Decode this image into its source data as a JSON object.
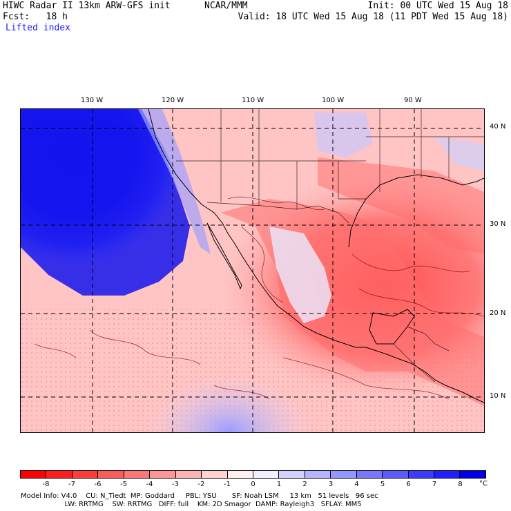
{
  "header": {
    "left_line1": "HIWC Radar II 13km ARW-GFS init",
    "left_line2": "Fcst:   18 h",
    "center_line1": "NCAR/MMM",
    "right_line1": "Init: 00 UTC Wed 15 Aug 18",
    "right_line2": "Valid: 18 UTC Wed 15 Aug 18 (11 PDT Wed 15 Aug 18)",
    "field": "Lifted index"
  },
  "axes": {
    "lon_labels": [
      "130 W",
      "120 W",
      "110 W",
      "100 W",
      "90 W"
    ],
    "lat_labels": [
      "40 N",
      "30 N",
      "20 N",
      "10 N"
    ]
  },
  "colorbar": {
    "ticks": [
      "-8",
      "-7",
      "-6",
      "-5",
      "-4",
      "-3",
      "-2",
      "-1",
      "0",
      "1",
      "2",
      "3",
      "4",
      "5",
      "6",
      "7",
      "8"
    ],
    "unit": "°C",
    "colors": [
      "#ff0000",
      "#ff1e1e",
      "#ff3c3c",
      "#ff5a5a",
      "#ff7878",
      "#ff9696",
      "#ffb4b4",
      "#ffd2d2",
      "#fff0f0",
      "#f0f0ff",
      "#d2d2ff",
      "#b4b4ff",
      "#9696ff",
      "#7878ff",
      "#5a5aff",
      "#3c3cff",
      "#1e1eff",
      "#0000e6"
    ]
  },
  "footer": {
    "line1": "Model Info: V4.0    CU: N_Tiedt  MP: Goddard     PBL: YSU       SF: Noah LSM     13 km   51 levels   96 sec",
    "line2": "                    LW: RRTMG    SW: RRTMG   DIFF: full    KM: 2D Smagor  DAMP: Rayleigh3   SFLAY: MM5"
  }
}
